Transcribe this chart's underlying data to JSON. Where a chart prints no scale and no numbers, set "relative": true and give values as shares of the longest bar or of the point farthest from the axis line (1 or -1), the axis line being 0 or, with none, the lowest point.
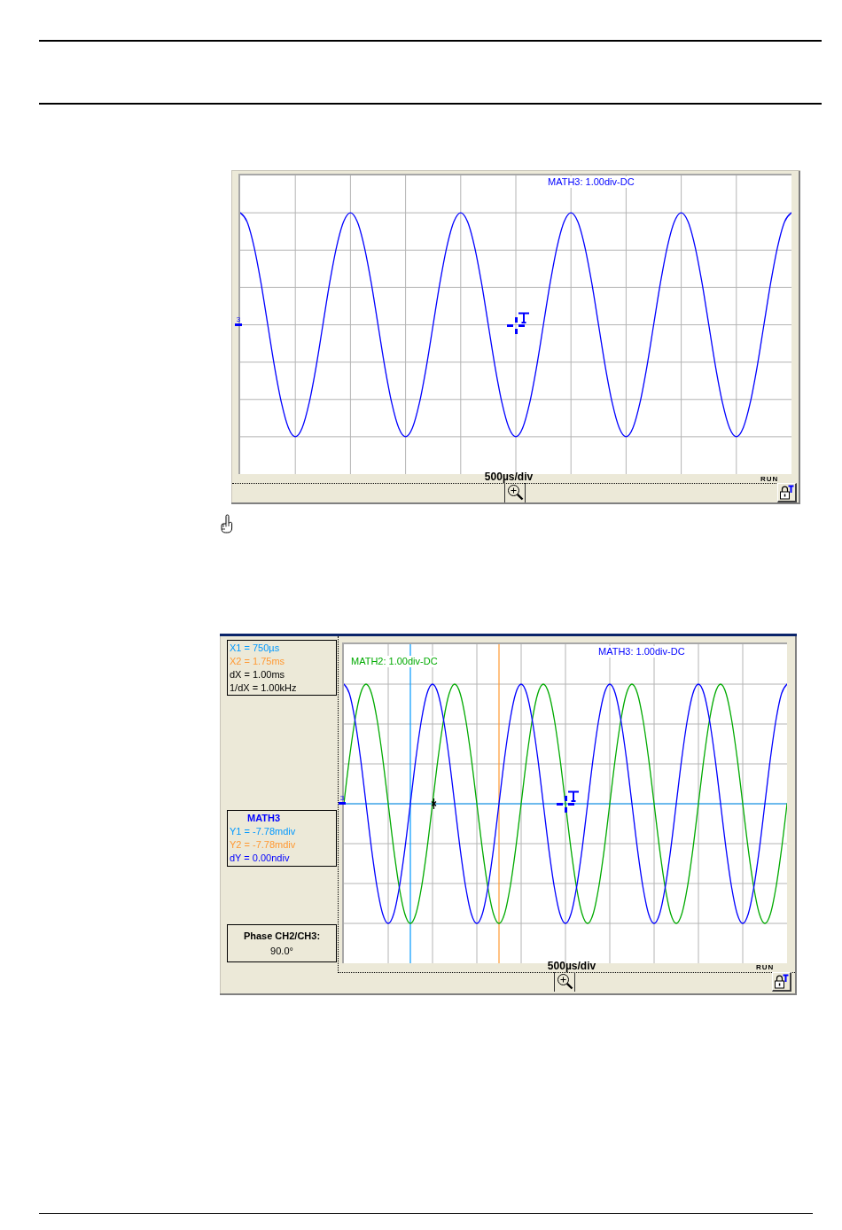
{
  "chart_data": [
    {
      "type": "line",
      "relative": true,
      "tick_labels": false,
      "grid": true,
      "xlabel": "500µs/div",
      "categories": [
        null,
        null,
        null,
        null,
        null,
        null,
        null,
        null,
        null,
        null,
        null,
        null,
        null,
        null,
        null,
        null,
        null,
        null,
        null,
        null,
        null,
        null,
        null,
        null,
        null,
        null,
        null,
        null,
        null,
        null,
        null,
        null,
        null,
        null,
        null,
        null,
        null,
        null,
        null,
        null,
        null,
        null,
        null,
        null,
        null,
        null,
        null,
        null,
        null,
        null,
        null,
        null,
        null,
        null,
        null,
        null,
        null,
        null,
        null,
        null,
        null,
        null,
        null,
        null,
        null,
        null,
        null,
        null,
        null,
        null,
        null,
        null,
        null,
        null,
        null,
        null,
        null,
        null,
        null,
        null,
        null
      ],
      "series": [
        {
          "name": "MATH3: 1.00div-DC",
          "color": "#0000ff",
          "values": [
            1,
            0.96,
            0.85,
            0.69,
            0.5,
            0.31,
            0.15,
            0.04,
            0,
            0.04,
            0.15,
            0.31,
            0.5,
            0.69,
            0.85,
            0.96,
            1,
            0.96,
            0.85,
            0.69,
            0.5,
            0.31,
            0.15,
            0.04,
            0,
            0.04,
            0.15,
            0.31,
            0.5,
            0.69,
            0.85,
            0.96,
            1,
            0.96,
            0.85,
            0.69,
            0.5,
            0.31,
            0.15,
            0.04,
            0,
            0.04,
            0.15,
            0.31,
            0.5,
            0.69,
            0.85,
            0.96,
            1,
            0.96,
            0.85,
            0.69,
            0.5,
            0.31,
            0.15,
            0.04,
            0,
            0.04,
            0.15,
            0.31,
            0.5,
            0.69,
            0.85,
            0.96,
            1,
            0.96,
            0.85,
            0.69,
            0.5,
            0.31,
            0.15,
            0.04,
            0,
            0.04,
            0.15,
            0.31,
            0.5,
            0.69,
            0.85,
            0.96,
            1
          ]
        }
      ],
      "annotations": [
        "3",
        "RUN"
      ]
    },
    {
      "type": "line",
      "relative": true,
      "tick_labels": false,
      "grid": true,
      "xlabel": "500µs/div",
      "categories": [
        null,
        null,
        null,
        null,
        null,
        null,
        null,
        null,
        null,
        null,
        null,
        null,
        null,
        null,
        null,
        null,
        null,
        null,
        null,
        null,
        null,
        null,
        null,
        null,
        null,
        null,
        null,
        null,
        null,
        null,
        null,
        null,
        null,
        null,
        null,
        null,
        null,
        null,
        null,
        null,
        null,
        null,
        null,
        null,
        null,
        null,
        null,
        null,
        null,
        null,
        null,
        null,
        null,
        null,
        null,
        null,
        null,
        null,
        null,
        null,
        null,
        null,
        null,
        null,
        null,
        null,
        null,
        null,
        null,
        null,
        null,
        null,
        null,
        null,
        null,
        null,
        null,
        null,
        null,
        null,
        null
      ],
      "series": [
        {
          "name": "MATH2: 1.00div-DC",
          "color": "#00aa00",
          "values": [
            0.5,
            0.69,
            0.85,
            0.96,
            1,
            0.96,
            0.85,
            0.69,
            0.5,
            0.31,
            0.15,
            0.04,
            0,
            0.04,
            0.15,
            0.31,
            0.5,
            0.69,
            0.85,
            0.96,
            1,
            0.96,
            0.85,
            0.69,
            0.5,
            0.31,
            0.15,
            0.04,
            0,
            0.04,
            0.15,
            0.31,
            0.5,
            0.69,
            0.85,
            0.96,
            1,
            0.96,
            0.85,
            0.69,
            0.5,
            0.31,
            0.15,
            0.04,
            0,
            0.04,
            0.15,
            0.31,
            0.5,
            0.69,
            0.85,
            0.96,
            1,
            0.96,
            0.85,
            0.69,
            0.5,
            0.31,
            0.15,
            0.04,
            0,
            0.04,
            0.15,
            0.31,
            0.5,
            0.69,
            0.85,
            0.96,
            1,
            0.96,
            0.85,
            0.69,
            0.5,
            0.31,
            0.15,
            0.04,
            0,
            0.04,
            0.15,
            0.31,
            0.5
          ]
        },
        {
          "name": "MATH3: 1.00div-DC",
          "color": "#0000ff",
          "values": [
            1,
            0.96,
            0.85,
            0.69,
            0.5,
            0.31,
            0.15,
            0.04,
            0,
            0.04,
            0.15,
            0.31,
            0.5,
            0.69,
            0.85,
            0.96,
            1,
            0.96,
            0.85,
            0.69,
            0.5,
            0.31,
            0.15,
            0.04,
            0,
            0.04,
            0.15,
            0.31,
            0.5,
            0.69,
            0.85,
            0.96,
            1,
            0.96,
            0.85,
            0.69,
            0.5,
            0.31,
            0.15,
            0.04,
            0,
            0.04,
            0.15,
            0.31,
            0.5,
            0.69,
            0.85,
            0.96,
            1,
            0.96,
            0.85,
            0.69,
            0.5,
            0.31,
            0.15,
            0.04,
            0,
            0.04,
            0.15,
            0.31,
            0.5,
            0.69,
            0.85,
            0.96,
            1,
            0.96,
            0.85,
            0.69,
            0.5,
            0.31,
            0.15,
            0.04,
            0,
            0.04,
            0.15,
            0.31,
            0.5,
            0.69,
            0.85,
            0.96,
            1
          ]
        }
      ],
      "ref_lines": [
        {
          "axis": "y",
          "value": 0.5,
          "color": "#0099ff"
        }
      ],
      "annotations": [
        "X1 = 750µs",
        "X2 = 1.75ms",
        "dX = 1.00ms",
        "1/dX = 1.00kHz",
        "MATH3",
        "Y1 = -7.78mdiv",
        "Y2 = -7.78mdiv",
        "dY = 0.00ndiv",
        "Phase CH2/CH3:",
        "90.0°",
        "RUN",
        "3"
      ]
    }
  ]
}
